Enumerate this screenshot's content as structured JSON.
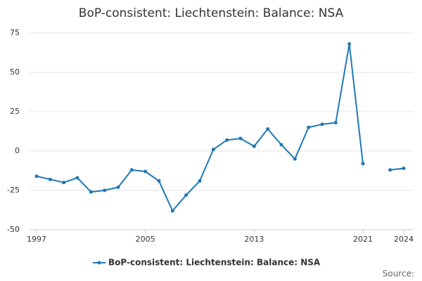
{
  "chart_data": {
    "type": "line",
    "title": "BoP-consistent: Liechtenstein: Balance: NSA",
    "x": [
      1997,
      1998,
      1999,
      2000,
      2001,
      2002,
      2003,
      2004,
      2005,
      2006,
      2007,
      2008,
      2009,
      2010,
      2011,
      2012,
      2013,
      2014,
      2015,
      2016,
      2017,
      2018,
      2019,
      2020,
      2021,
      2022,
      2023,
      2024
    ],
    "series": [
      {
        "name": "BoP-consistent: Liechtenstein: Balance: NSA",
        "color": "#1f78b4",
        "values": [
          -16,
          -18,
          -20,
          -17,
          -26,
          -25,
          -23,
          -12,
          -13,
          -19,
          -38,
          -28,
          -19,
          1,
          7,
          8,
          3,
          14,
          4,
          -5,
          15,
          17,
          18,
          68,
          -8,
          null,
          -12,
          -11
        ]
      }
    ],
    "xlim": [
      1997,
      2024
    ],
    "xticks": [
      1997,
      2005,
      2013,
      2021,
      2024
    ],
    "ylim": [
      -50,
      75
    ],
    "yticks": [
      -50,
      -25,
      0,
      25,
      50,
      75
    ],
    "grid": true,
    "legend": "bottom",
    "source": "Source:"
  }
}
